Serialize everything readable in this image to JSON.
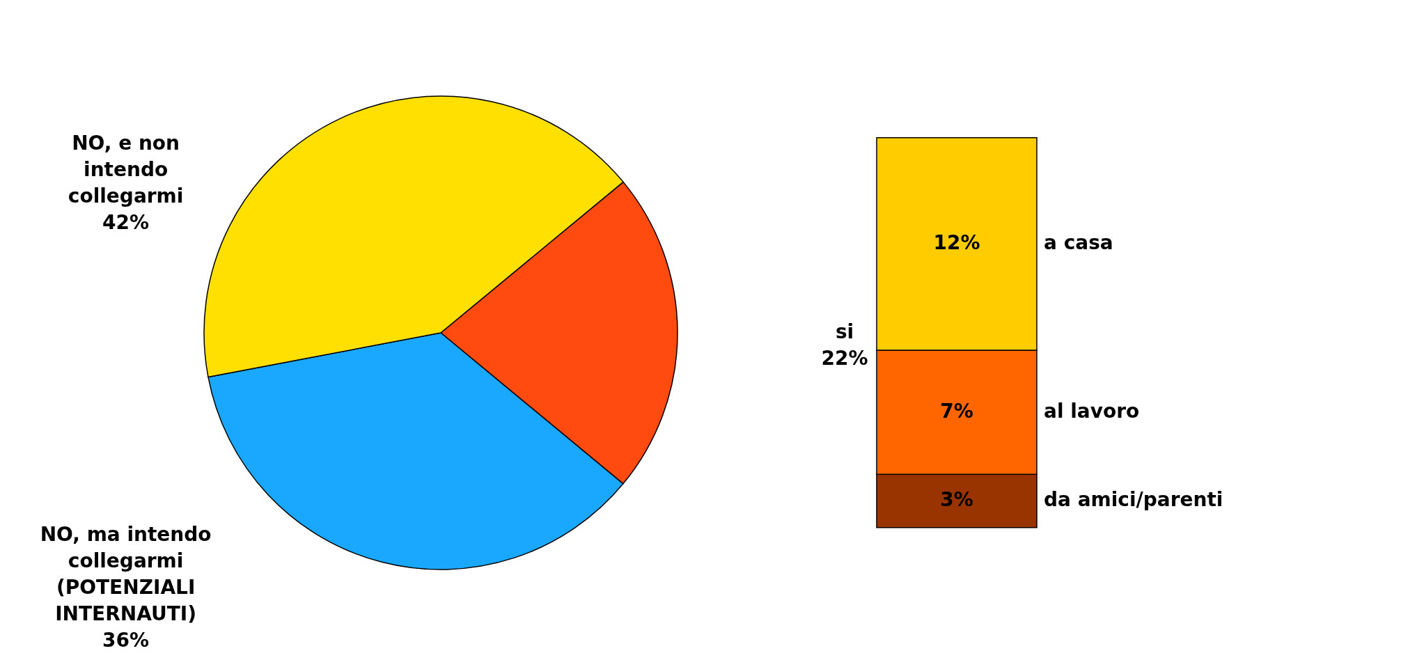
{
  "chart_data": [
    {
      "type": "pie",
      "categories": [
        "si",
        "NO, ma intendo collegarmi (POTENZIALI INTERNAUTI)",
        "NO, e non intendo collegarmi"
      ],
      "values": [
        22,
        36,
        42
      ],
      "colors": [
        "#ff4a10",
        "#1aa8ff",
        "#ffe000"
      ],
      "value_labels": [
        "22%",
        "36%",
        "42%"
      ]
    },
    {
      "type": "bar",
      "stacked": true,
      "categories": [
        null
      ],
      "series": [
        {
          "name": "da amici/parenti",
          "color": "#993300",
          "values": [
            3
          ],
          "value_labels": [
            "3%"
          ]
        },
        {
          "name": "al lavoro",
          "color": "#ff6600",
          "values": [
            7
          ],
          "value_labels": [
            "7%"
          ]
        },
        {
          "name": "a casa",
          "color": "#ffcc00",
          "values": [
            12
          ],
          "value_labels": [
            "12%"
          ]
        }
      ]
    }
  ]
}
